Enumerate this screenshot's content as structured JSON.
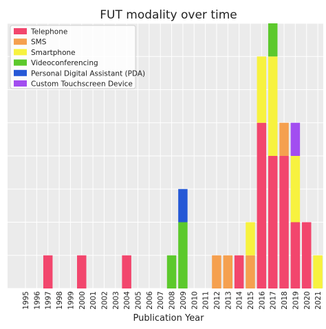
{
  "chart_data": {
    "type": "bar",
    "stacked": true,
    "title": "FUT modality over time",
    "xlabel": "Publication Year",
    "ylabel": "",
    "categories": [
      "1995",
      "1996",
      "1997",
      "1998",
      "1999",
      "2000",
      "2001",
      "2002",
      "2003",
      "2004",
      "2005",
      "2006",
      "2007",
      "2008",
      "2009",
      "2010",
      "2011",
      "2012",
      "2013",
      "2014",
      "2015",
      "2016",
      "2017",
      "2018",
      "2019",
      "2020",
      "2021"
    ],
    "ylim": [
      0,
      8
    ],
    "yticks": [
      0,
      1,
      2,
      3,
      4,
      5,
      6,
      7,
      8
    ],
    "grid": true,
    "legend_position": "top-left",
    "series": [
      {
        "name": "Telephone",
        "color": "#f2466d",
        "values": [
          0,
          0,
          1,
          0,
          0,
          1,
          0,
          0,
          0,
          1,
          0,
          0,
          0,
          0,
          0,
          0,
          0,
          0,
          0,
          1,
          0,
          5,
          4,
          4,
          2,
          2,
          0
        ]
      },
      {
        "name": "SMS",
        "color": "#f5a04f",
        "values": [
          0,
          0,
          0,
          0,
          0,
          0,
          0,
          0,
          0,
          0,
          0,
          0,
          0,
          0,
          0,
          0,
          0,
          1,
          1,
          0,
          1,
          0,
          0,
          1,
          0,
          0,
          0
        ]
      },
      {
        "name": "Smartphone",
        "color": "#f7f23f",
        "values": [
          0,
          0,
          0,
          0,
          0,
          0,
          0,
          0,
          0,
          0,
          0,
          0,
          0,
          0,
          0,
          0,
          0,
          0,
          0,
          0,
          1,
          2,
          3,
          0,
          2,
          0,
          1
        ]
      },
      {
        "name": "Videoconferencing",
        "color": "#5cc92c",
        "values": [
          0,
          0,
          0,
          0,
          0,
          0,
          0,
          0,
          0,
          0,
          0,
          0,
          0,
          1,
          2,
          0,
          0,
          0,
          0,
          0,
          0,
          0,
          1,
          0,
          0,
          0,
          0
        ]
      },
      {
        "name": "Personal Digital Assistant (PDA)",
        "color": "#2558d6",
        "values": [
          0,
          0,
          0,
          0,
          0,
          0,
          0,
          0,
          0,
          0,
          0,
          0,
          0,
          0,
          1,
          0,
          0,
          0,
          0,
          0,
          0,
          0,
          0,
          0,
          0,
          0,
          0
        ]
      },
      {
        "name": "Custom Touchscreen Device",
        "color": "#a24df0",
        "values": [
          0,
          0,
          0,
          0,
          0,
          0,
          0,
          0,
          0,
          0,
          0,
          0,
          0,
          0,
          0,
          0,
          0,
          0,
          0,
          0,
          0,
          0,
          0,
          0,
          1,
          0,
          0
        ]
      }
    ]
  }
}
